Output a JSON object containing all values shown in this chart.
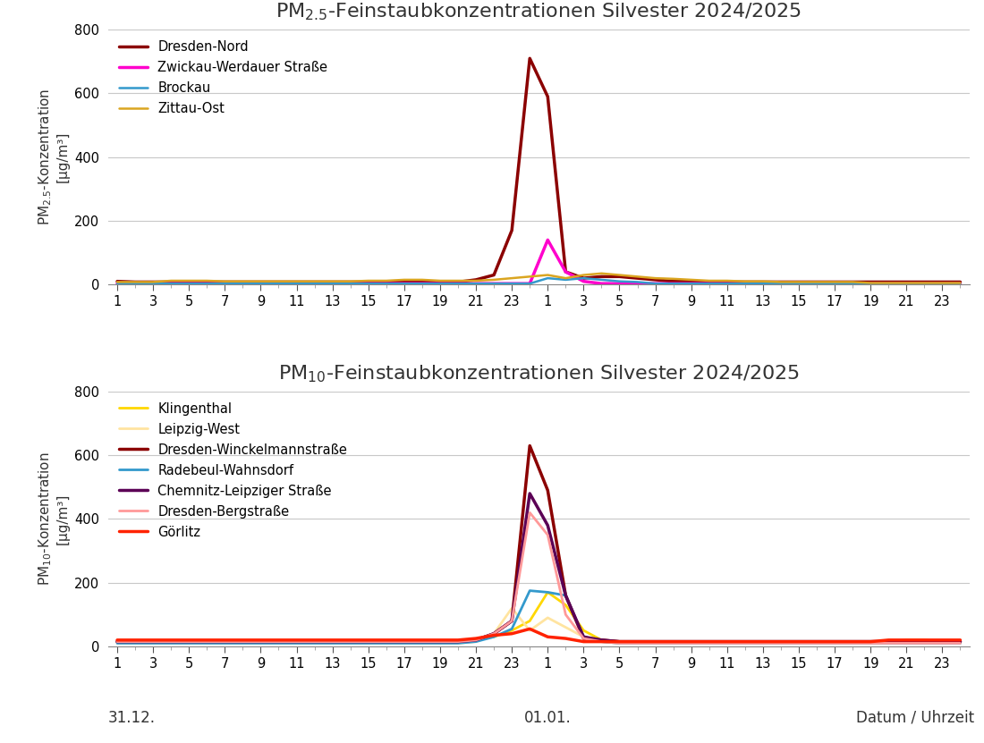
{
  "title_pm25": "PM$_{2.5}$-Feinstaubkonzentrationen Silvester 2024/2025",
  "title_pm10": "PM$_{10}$-Feinstaubkonzentrationen Silvester 2024/2025",
  "ylabel_pm25": "PM$_{2.5}$-Konzentration\n[µg/m³]",
  "ylabel_pm10": "PM$_{10}$-Konzentration\n[µg/m³]",
  "xlabel": "Datum / Uhrzeit",
  "date_labels": [
    "31.12.",
    "01.01."
  ],
  "xtick_labels": [
    "1",
    "3",
    "5",
    "7",
    "9",
    "11",
    "13",
    "15",
    "17",
    "19",
    "21",
    "23",
    "1",
    "3",
    "5",
    "7",
    "9",
    "11",
    "13",
    "15",
    "17",
    "19",
    "21",
    "23"
  ],
  "ylim": [
    0,
    800
  ],
  "yticks": [
    0,
    200,
    400,
    600,
    800
  ],
  "background_color": "#ffffff",
  "grid_color": "#c8c8c8",
  "pm25": {
    "stations": [
      "Dresden-Nord",
      "Zwickau-Werdauer Straße",
      "Brockau",
      "Zittau-Ost"
    ],
    "colors": [
      "#8B0000",
      "#FF00CC",
      "#3399CC",
      "#DAA520"
    ],
    "linewidths": [
      2.5,
      2.5,
      1.8,
      1.8
    ],
    "data": {
      "Dresden-Nord": [
        10,
        8,
        8,
        8,
        8,
        8,
        8,
        8,
        8,
        8,
        8,
        8,
        8,
        8,
        8,
        8,
        8,
        8,
        8,
        8,
        15,
        30,
        170,
        710,
        590,
        40,
        20,
        25,
        25,
        20,
        15,
        10,
        10,
        8,
        8,
        8,
        8,
        8,
        8,
        8,
        8,
        8,
        8,
        8,
        8,
        8,
        8,
        8
      ],
      "Zwickau-Werdauer Straße": [
        3,
        3,
        3,
        3,
        3,
        3,
        3,
        3,
        3,
        3,
        3,
        3,
        3,
        3,
        3,
        3,
        3,
        3,
        3,
        3,
        3,
        3,
        3,
        3,
        140,
        40,
        10,
        3,
        3,
        3,
        3,
        3,
        3,
        3,
        3,
        3,
        3,
        3,
        3,
        3,
        3,
        3,
        3,
        3,
        3,
        3,
        3,
        3
      ],
      "Brockau": [
        3,
        3,
        3,
        3,
        3,
        3,
        3,
        3,
        3,
        3,
        3,
        3,
        3,
        3,
        3,
        3,
        3,
        3,
        3,
        3,
        3,
        3,
        3,
        3,
        20,
        15,
        20,
        15,
        10,
        8,
        3,
        3,
        3,
        3,
        3,
        3,
        3,
        3,
        3,
        3,
        3,
        3,
        3,
        3,
        3,
        3,
        3,
        3
      ],
      "Zittau-Ost": [
        8,
        8,
        8,
        12,
        12,
        12,
        10,
        10,
        10,
        10,
        10,
        10,
        10,
        10,
        12,
        12,
        15,
        15,
        12,
        12,
        12,
        15,
        20,
        25,
        30,
        20,
        30,
        35,
        30,
        25,
        20,
        18,
        15,
        12,
        12,
        10,
        10,
        8,
        8,
        8,
        8,
        8,
        5,
        5,
        5,
        5,
        5,
        5
      ]
    }
  },
  "pm10": {
    "stations": [
      "Klingenthal",
      "Leipzig-West",
      "Dresden-Winckelmannstraße",
      "Radebeul-Wahnsdorf",
      "Chemnitz-Leipziger Straße",
      "Dresden-Bergstraße",
      "Görlitz"
    ],
    "colors": [
      "#FFD700",
      "#FFE4A0",
      "#8B0000",
      "#3399CC",
      "#5B0055",
      "#FF9999",
      "#FF2200"
    ],
    "linewidths": [
      2.0,
      2.0,
      2.5,
      2.0,
      2.5,
      2.0,
      2.5
    ],
    "data": {
      "Klingenthal": [
        15,
        15,
        15,
        15,
        15,
        15,
        15,
        15,
        15,
        15,
        15,
        15,
        15,
        15,
        15,
        15,
        15,
        15,
        15,
        15,
        20,
        30,
        50,
        80,
        170,
        130,
        50,
        20,
        15,
        15,
        15,
        15,
        15,
        15,
        15,
        15,
        15,
        15,
        15,
        15,
        15,
        15,
        15,
        15,
        20,
        20,
        15,
        15
      ],
      "Leipzig-West": [
        10,
        10,
        10,
        10,
        10,
        10,
        10,
        10,
        10,
        10,
        10,
        10,
        10,
        10,
        10,
        10,
        10,
        10,
        10,
        10,
        15,
        40,
        120,
        50,
        90,
        60,
        30,
        15,
        10,
        10,
        10,
        10,
        10,
        10,
        10,
        10,
        10,
        10,
        10,
        10,
        10,
        10,
        10,
        10,
        10,
        10,
        10,
        10
      ],
      "Dresden-Winckelmannstraße": [
        15,
        15,
        15,
        15,
        15,
        15,
        15,
        15,
        15,
        15,
        15,
        15,
        15,
        15,
        15,
        15,
        15,
        15,
        15,
        15,
        20,
        40,
        80,
        630,
        490,
        160,
        25,
        20,
        15,
        15,
        15,
        15,
        15,
        15,
        15,
        15,
        15,
        15,
        15,
        15,
        15,
        15,
        15,
        15,
        15,
        15,
        15,
        15
      ],
      "Radebeul-Wahnsdorf": [
        10,
        10,
        10,
        10,
        10,
        10,
        10,
        10,
        10,
        10,
        10,
        10,
        10,
        10,
        10,
        10,
        10,
        10,
        10,
        10,
        15,
        30,
        55,
        175,
        170,
        160,
        30,
        15,
        10,
        10,
        10,
        10,
        10,
        10,
        10,
        10,
        10,
        10,
        10,
        10,
        10,
        10,
        10,
        10,
        10,
        10,
        10,
        10
      ],
      "Chemnitz-Leipziger Straße": [
        15,
        15,
        15,
        15,
        15,
        15,
        15,
        15,
        15,
        15,
        15,
        15,
        15,
        15,
        15,
        15,
        15,
        15,
        15,
        15,
        20,
        40,
        80,
        480,
        380,
        160,
        30,
        20,
        15,
        15,
        15,
        15,
        15,
        15,
        15,
        15,
        15,
        15,
        15,
        15,
        15,
        15,
        15,
        15,
        15,
        15,
        15,
        15
      ],
      "Dresden-Bergstraße": [
        15,
        15,
        15,
        15,
        15,
        15,
        15,
        15,
        15,
        15,
        15,
        15,
        15,
        15,
        15,
        15,
        15,
        15,
        15,
        15,
        20,
        40,
        80,
        420,
        350,
        100,
        25,
        15,
        10,
        10,
        10,
        10,
        10,
        10,
        10,
        10,
        10,
        10,
        10,
        10,
        10,
        10,
        10,
        10,
        10,
        10,
        10,
        10
      ],
      "Görlitz": [
        20,
        20,
        20,
        20,
        20,
        20,
        20,
        20,
        20,
        20,
        20,
        20,
        20,
        20,
        20,
        20,
        20,
        20,
        20,
        20,
        25,
        35,
        40,
        55,
        30,
        25,
        15,
        15,
        15,
        15,
        15,
        15,
        15,
        15,
        15,
        15,
        15,
        15,
        15,
        15,
        15,
        15,
        15,
        20,
        20,
        20,
        20,
        20
      ]
    }
  }
}
